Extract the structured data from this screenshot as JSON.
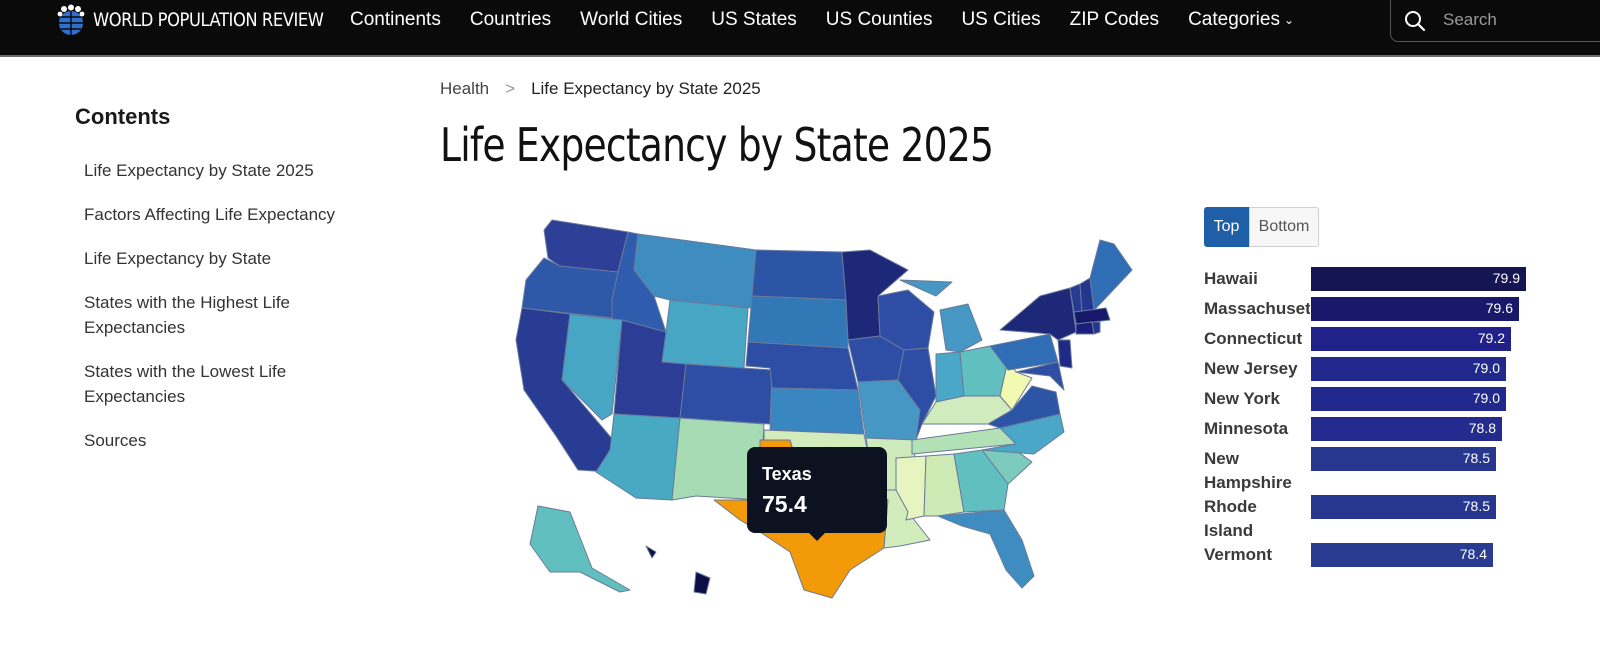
{
  "brand": {
    "name": "WORLD POPULATION REVIEW"
  },
  "nav": {
    "items": [
      "Continents",
      "Countries",
      "World Cities",
      "US States",
      "US Counties",
      "US Cities",
      "ZIP Codes",
      "Categories"
    ],
    "search_placeholder": "Search"
  },
  "sidebar": {
    "title": "Contents",
    "items": [
      "Life Expectancy by State 2025",
      "Factors Affecting Life Expectancy",
      "Life Expectancy by State",
      "States with the Highest Life Expectancies",
      "States with the Lowest Life Expectancies",
      "Sources"
    ]
  },
  "breadcrumb": {
    "parent": "Health",
    "separator": ">",
    "current": "Life Expectancy by State 2025"
  },
  "page_title": "Life Expectancy by State 2025",
  "map": {
    "tooltip": {
      "state": "Texas",
      "value": "75.4"
    }
  },
  "toggle": {
    "top_label": "Top",
    "bottom_label": "Bottom",
    "selected": "Top"
  },
  "chart_data": {
    "type": "bar",
    "categories": [
      "Hawaii",
      "Massachusetts",
      "Connecticut",
      "New Jersey",
      "New York",
      "Minnesota",
      "New Hampshire",
      "Rhode Island",
      "Vermont"
    ],
    "display_labels": [
      "Hawaii",
      "Massachuset",
      "Connecticut",
      "New Jersey",
      "New York",
      "Minnesota",
      "New Hampshire",
      "Rhode Island",
      "Vermont"
    ],
    "values": [
      79.9,
      79.6,
      79.2,
      79.0,
      79.0,
      78.8,
      78.5,
      78.5,
      78.4
    ],
    "value_labels": [
      "79.9",
      "79.6",
      "79.2",
      "79.0",
      "79.0",
      "78.8",
      "78.5",
      "78.5",
      "78.4"
    ],
    "colors": [
      "#141552",
      "#18196a",
      "#20228a",
      "#212a8c",
      "#212a8c",
      "#232c8e",
      "#27378f",
      "#27378f",
      "#293c92"
    ]
  }
}
